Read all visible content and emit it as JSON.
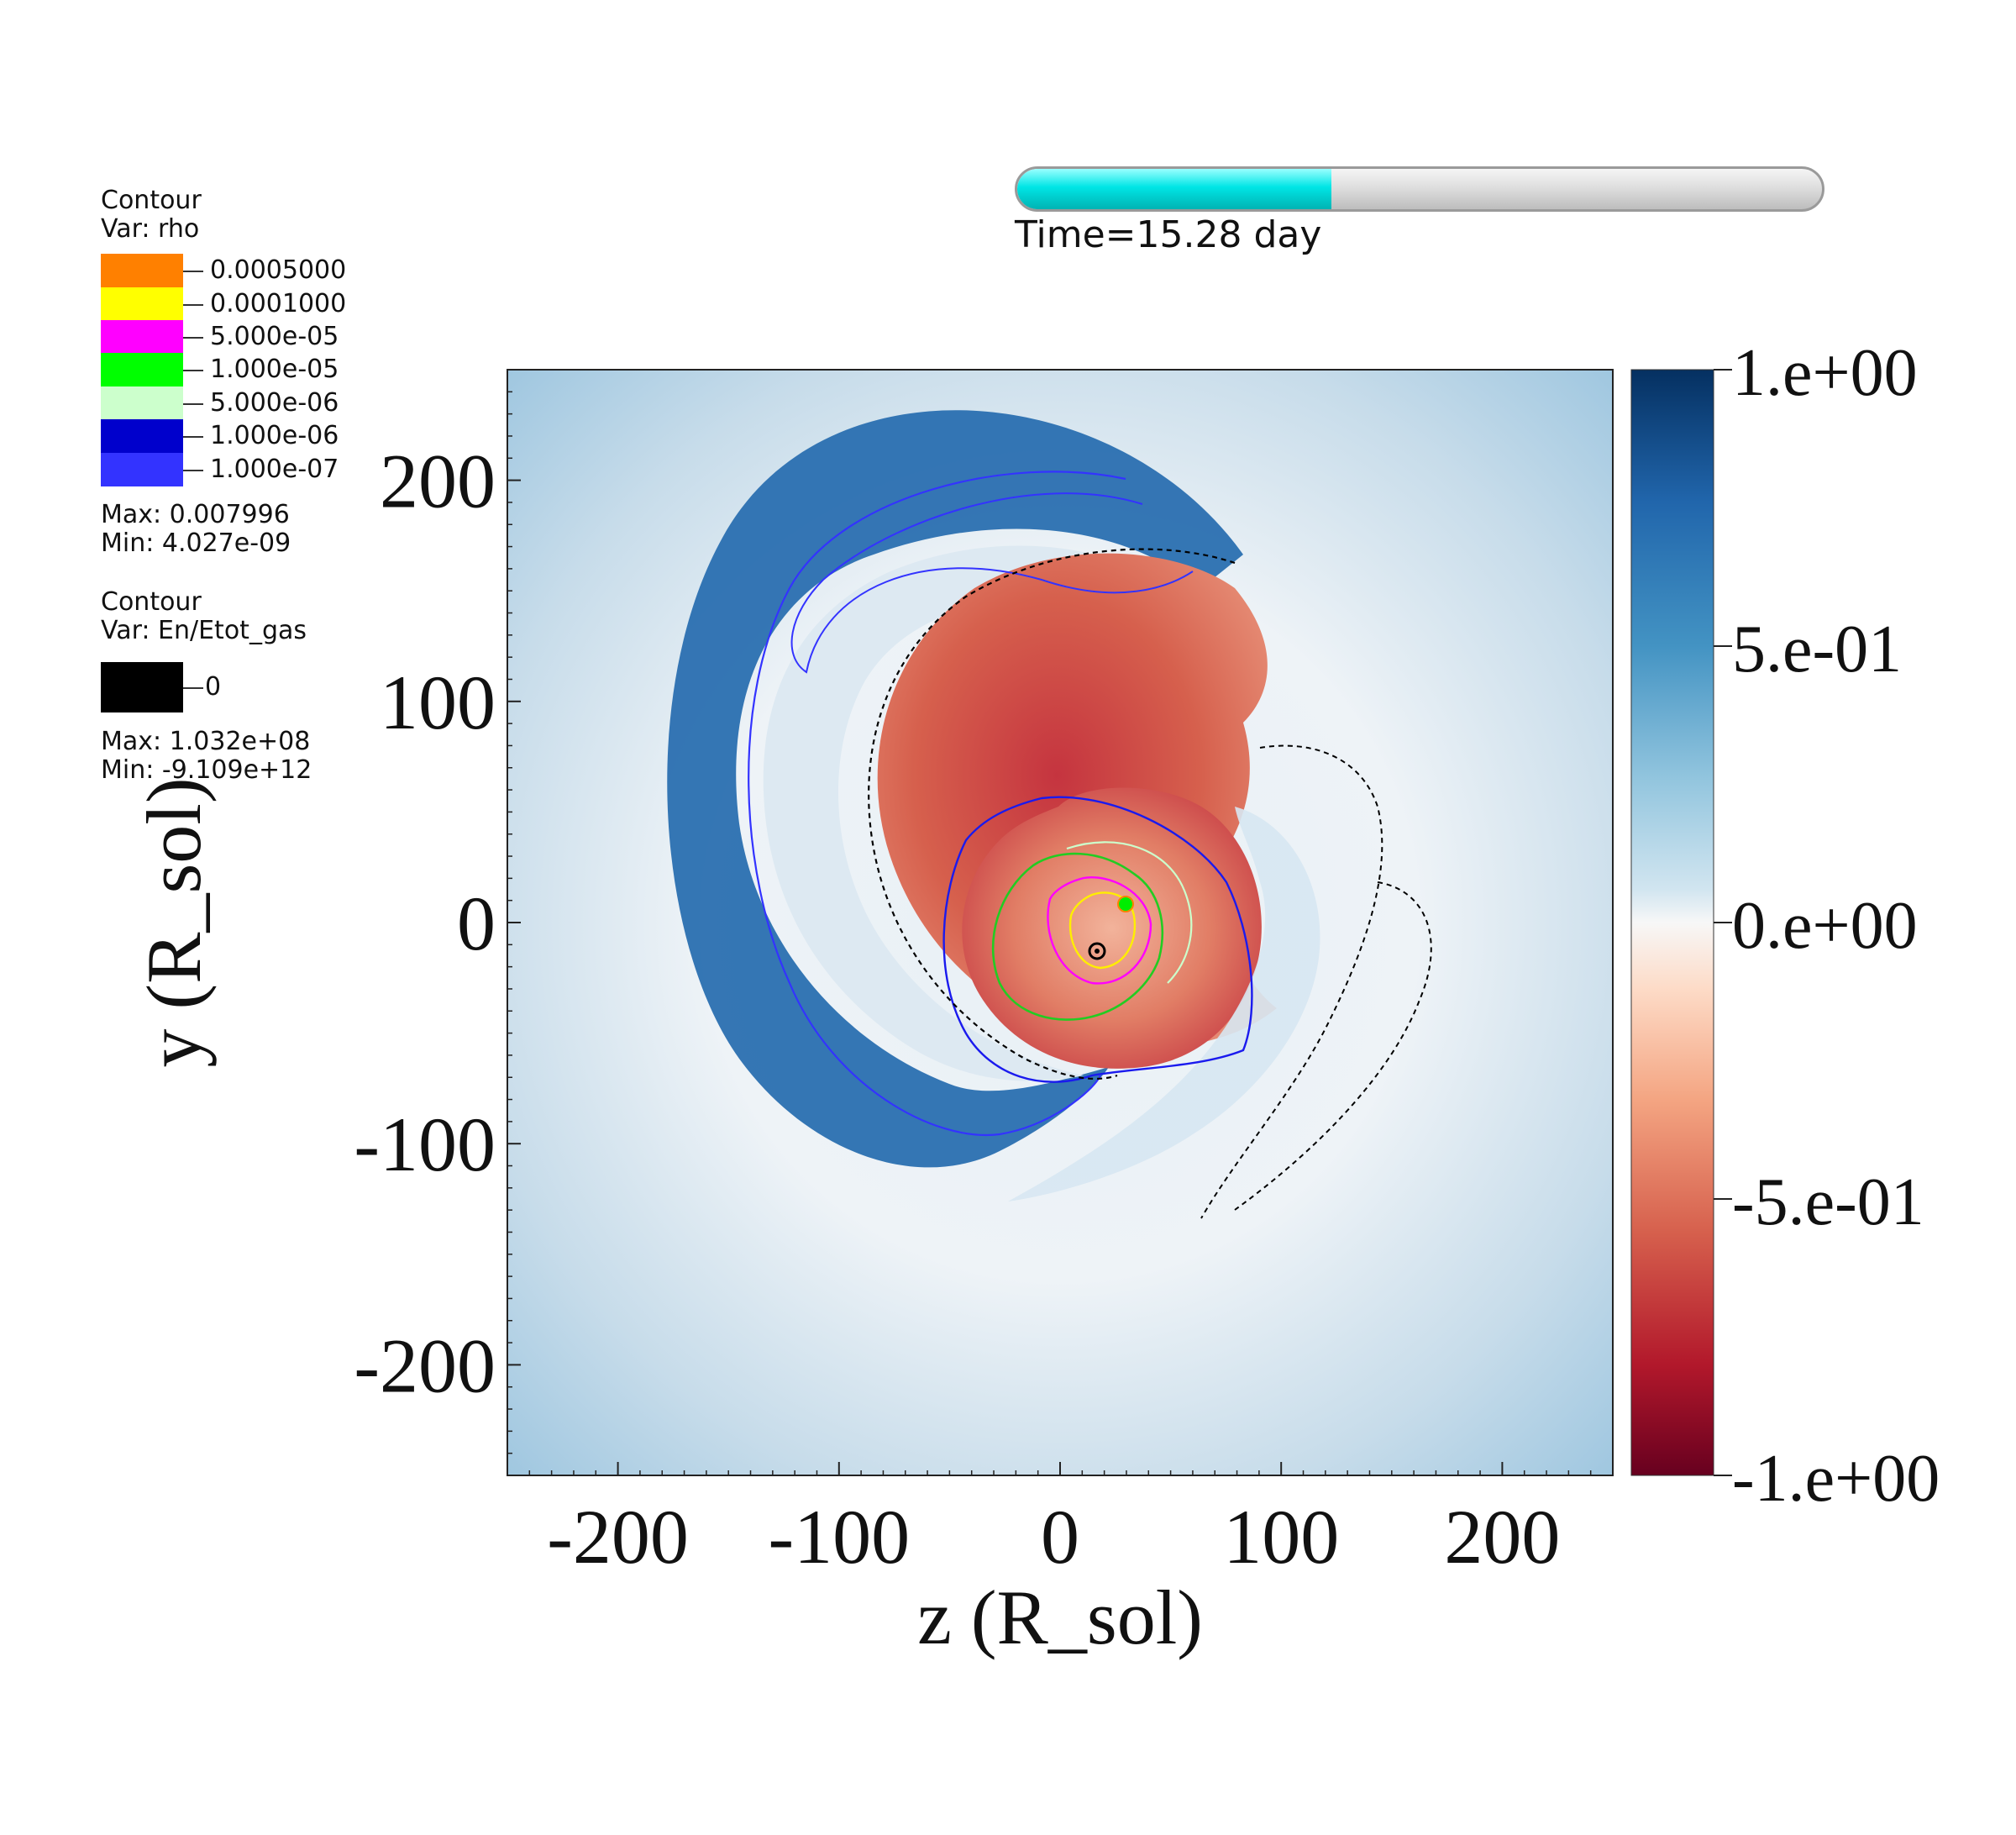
{
  "time_slider": {
    "label": "Time=15.28 day",
    "progress": 0.39
  },
  "legend_rho": {
    "title": "Contour",
    "var": "Var: rho",
    "levels": [
      {
        "label": "0.0005000",
        "color": "#ff8000"
      },
      {
        "label": "0.0001000",
        "color": "#ffff00"
      },
      {
        "label": "5.000e-05",
        "color": "#ff00ff"
      },
      {
        "label": "1.000e-05",
        "color": "#00ff00"
      },
      {
        "label": "5.000e-06",
        "color": "#ccffcc"
      },
      {
        "label": "1.000e-06",
        "color": "#0000cc"
      },
      {
        "label": "1.000e-07",
        "color": "#3333ff"
      }
    ],
    "max": "Max:  0.007996",
    "min": "Min:  4.027e-09"
  },
  "legend_energy": {
    "title": "Contour",
    "var": "Var: En/Etot_gas",
    "levels": [
      {
        "label": "0",
        "color": "#000000"
      }
    ],
    "max": "Max:  1.032e+08",
    "min": "Min: -9.109e+12"
  },
  "plot": {
    "xlabel": "z (R_sol)",
    "ylabel": "y (R_sol)",
    "xticks": [
      "-200",
      "-100",
      "0",
      "100",
      "200"
    ],
    "yticks": [
      "200",
      "100",
      "0",
      "-100",
      "-200"
    ],
    "xtick_values": [
      -200,
      -100,
      0,
      100,
      200
    ],
    "ytick_values": [
      200,
      100,
      0,
      -100,
      -200
    ],
    "xlim": [
      -250,
      250
    ],
    "ylim": [
      -250,
      250
    ]
  },
  "colorbar": {
    "labels": [
      "1.e+00",
      "5.e-01",
      "0.e+00",
      "-5.e-01",
      "-1.e+00"
    ],
    "values": [
      1.0,
      0.5,
      0.0,
      -0.5,
      -1.0
    ],
    "colors": {
      "high": "#053061",
      "mid": "#f7f7f7",
      "low": "#67001f"
    }
  }
}
